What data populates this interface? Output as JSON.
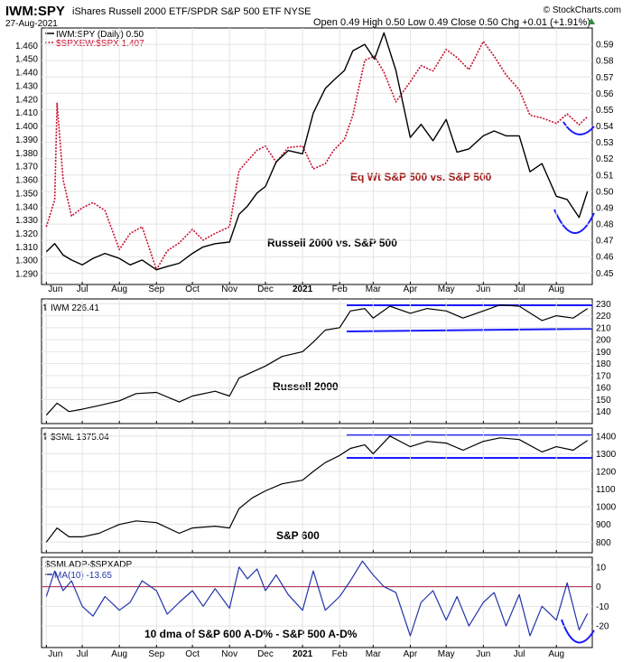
{
  "header": {
    "ticker": "IWM:SPY",
    "name": "iShares Russell 2000 ETF/SPDR S&P 500 ETF NYSE",
    "watermark": "© StockCharts.com",
    "date": "27-Aug-2021",
    "quote": "Open 0.49  High 0.50  Low 0.49  Close 0.50  Chg +0.01 (+1.91%)"
  },
  "colors": {
    "black": "#000000",
    "red": "#c8102e",
    "blue": "#1a1aff",
    "ma": "#2233aa",
    "zero": "#b02040"
  },
  "x_labels": [
    "Jun",
    "Jul",
    "Aug",
    "Sep",
    "Oct",
    "Nov",
    "Dec",
    "2021",
    "Feb",
    "Mar",
    "Apr",
    "May",
    "Jun",
    "Jul",
    "Aug"
  ],
  "chart_data": [
    {
      "type": "line",
      "legend": [
        "IWM:SPY (Daily) 0.50",
        "$SPXEW:$SPX 1.407"
      ],
      "annotations": [
        "Eq Wt S&P 500 vs. S&P 500",
        "Russell 2000 vs. S&P 500"
      ],
      "left_axis": {
        "ylim": [
          1.282,
          1.473
        ],
        "ticks": [
          "1.290",
          "1.300",
          "1.310",
          "1.320",
          "1.330",
          "1.340",
          "1.350",
          "1.360",
          "1.370",
          "1.380",
          "1.390",
          "1.400",
          "1.410",
          "1.420",
          "1.430",
          "1.440",
          "1.450",
          "1.460"
        ]
      },
      "right_axis": {
        "ylim": [
          0.443,
          0.6
        ],
        "ticks": [
          "0.45",
          "0.46",
          "0.47",
          "0.48",
          "0.49",
          "0.50",
          "0.51",
          "0.52",
          "0.53",
          "0.54",
          "0.55",
          "0.56",
          "0.57",
          "0.58",
          "0.59"
        ]
      },
      "series": [
        {
          "name": "IWM:SPY",
          "axis": "right",
          "style": "solid",
          "color": "#000000",
          "x": [
            "2020-06-01",
            "2020-06-08",
            "2020-06-15",
            "2020-06-22",
            "2020-07-01",
            "2020-07-10",
            "2020-07-20",
            "2020-08-01",
            "2020-08-10",
            "2020-08-20",
            "2020-09-01",
            "2020-09-10",
            "2020-09-20",
            "2020-10-01",
            "2020-10-10",
            "2020-10-20",
            "2020-11-01",
            "2020-11-09",
            "2020-11-16",
            "2020-11-24",
            "2020-12-01",
            "2020-12-10",
            "2020-12-20",
            "2021-01-01",
            "2021-01-10",
            "2021-01-20",
            "2021-01-27",
            "2021-02-05",
            "2021-02-12",
            "2021-02-22",
            "2021-03-02",
            "2021-03-10",
            "2021-03-20",
            "2021-04-01",
            "2021-04-10",
            "2021-04-20",
            "2021-05-01",
            "2021-05-10",
            "2021-05-20",
            "2021-06-01",
            "2021-06-10",
            "2021-06-20",
            "2021-07-01",
            "2021-07-10",
            "2021-07-20",
            "2021-08-01",
            "2021-08-10",
            "2021-08-20",
            "2021-08-27"
          ],
          "values": [
            0.463,
            0.468,
            0.461,
            0.458,
            0.455,
            0.459,
            0.462,
            0.459,
            0.455,
            0.458,
            0.452,
            0.454,
            0.456,
            0.462,
            0.466,
            0.468,
            0.469,
            0.486,
            0.491,
            0.499,
            0.503,
            0.518,
            0.525,
            0.523,
            0.548,
            0.563,
            0.568,
            0.574,
            0.586,
            0.59,
            0.581,
            0.597,
            0.574,
            0.533,
            0.541,
            0.531,
            0.544,
            0.524,
            0.526,
            0.534,
            0.537,
            0.534,
            0.534,
            0.512,
            0.517,
            0.497,
            0.495,
            0.484,
            0.5
          ]
        },
        {
          "name": "$SPXEW:$SPX",
          "axis": "left",
          "style": "dotted",
          "color": "#c8102e",
          "x": [
            "2020-06-01",
            "2020-06-08",
            "2020-06-10",
            "2020-06-15",
            "2020-06-22",
            "2020-07-01",
            "2020-07-10",
            "2020-07-20",
            "2020-08-01",
            "2020-08-10",
            "2020-08-20",
            "2020-09-01",
            "2020-09-10",
            "2020-09-20",
            "2020-10-01",
            "2020-10-10",
            "2020-10-20",
            "2020-11-01",
            "2020-11-09",
            "2020-11-16",
            "2020-11-24",
            "2020-12-01",
            "2020-12-10",
            "2020-12-20",
            "2021-01-01",
            "2021-01-10",
            "2021-01-20",
            "2021-01-27",
            "2021-02-05",
            "2021-02-12",
            "2021-02-22",
            "2021-03-02",
            "2021-03-10",
            "2021-03-20",
            "2021-04-01",
            "2021-04-10",
            "2021-04-20",
            "2021-05-01",
            "2021-05-10",
            "2021-05-20",
            "2021-06-01",
            "2021-06-10",
            "2021-06-20",
            "2021-07-01",
            "2021-07-10",
            "2021-07-20",
            "2021-08-01",
            "2021-08-10",
            "2021-08-20",
            "2021-08-27"
          ],
          "values": [
            1.325,
            1.345,
            1.417,
            1.36,
            1.333,
            1.339,
            1.343,
            1.337,
            1.308,
            1.32,
            1.325,
            1.293,
            1.307,
            1.313,
            1.323,
            1.315,
            1.32,
            1.325,
            1.367,
            1.374,
            1.382,
            1.385,
            1.373,
            1.384,
            1.385,
            1.368,
            1.372,
            1.382,
            1.39,
            1.408,
            1.449,
            1.452,
            1.44,
            1.418,
            1.433,
            1.445,
            1.441,
            1.457,
            1.451,
            1.442,
            1.463,
            1.452,
            1.438,
            1.427,
            1.408,
            1.406,
            1.402,
            1.409,
            1.401,
            1.407
          ]
        }
      ]
    },
    {
      "type": "line",
      "legend": [
        "IWM 226.41"
      ],
      "annotations": [
        "Russell 2000"
      ],
      "ylim": [
        130,
        234
      ],
      "ticks": [
        "140",
        "150",
        "160",
        "170",
        "180",
        "190",
        "200",
        "210",
        "220",
        "230"
      ],
      "series": [
        {
          "name": "IWM",
          "color": "#000000",
          "x": [
            "2020-06-01",
            "2020-06-10",
            "2020-06-20",
            "2020-07-01",
            "2020-07-15",
            "2020-08-01",
            "2020-08-15",
            "2020-09-01",
            "2020-09-20",
            "2020-10-01",
            "2020-10-20",
            "2020-11-01",
            "2020-11-09",
            "2020-11-20",
            "2020-12-01",
            "2020-12-15",
            "2021-01-01",
            "2021-01-10",
            "2021-01-20",
            "2021-02-01",
            "2021-02-10",
            "2021-02-22",
            "2021-03-01",
            "2021-03-15",
            "2021-04-01",
            "2021-04-15",
            "2021-05-01",
            "2021-05-15",
            "2021-06-01",
            "2021-06-15",
            "2021-07-01",
            "2021-07-20",
            "2021-08-01",
            "2021-08-15",
            "2021-08-27"
          ],
          "values": [
            137,
            147,
            140,
            142,
            145,
            149,
            155,
            156,
            148,
            153,
            157,
            153,
            168,
            173,
            178,
            186,
            190,
            198,
            208,
            210,
            224,
            226,
            218,
            228,
            222,
            226,
            224,
            218,
            224,
            229,
            228,
            216,
            220,
            218,
            226
          ]
        }
      ]
    },
    {
      "type": "line",
      "legend": [
        "$SML 1375.04"
      ],
      "annotations": [
        "S&P 600"
      ],
      "ylim": [
        740,
        1445
      ],
      "ticks": [
        "800",
        "900",
        "1000",
        "1100",
        "1200",
        "1300",
        "1400"
      ],
      "series": [
        {
          "name": "$SML",
          "color": "#000000",
          "x": [
            "2020-06-01",
            "2020-06-10",
            "2020-06-20",
            "2020-07-01",
            "2020-07-15",
            "2020-08-01",
            "2020-08-15",
            "2020-09-01",
            "2020-09-20",
            "2020-10-01",
            "2020-10-20",
            "2020-11-01",
            "2020-11-09",
            "2020-11-20",
            "2020-12-01",
            "2020-12-15",
            "2021-01-01",
            "2021-01-10",
            "2021-01-20",
            "2021-02-01",
            "2021-02-10",
            "2021-02-22",
            "2021-03-01",
            "2021-03-15",
            "2021-04-01",
            "2021-04-15",
            "2021-05-01",
            "2021-05-15",
            "2021-06-01",
            "2021-06-15",
            "2021-07-01",
            "2021-07-20",
            "2021-08-01",
            "2021-08-15",
            "2021-08-27"
          ],
          "values": [
            800,
            880,
            830,
            830,
            850,
            900,
            920,
            910,
            850,
            880,
            890,
            880,
            990,
            1050,
            1090,
            1130,
            1150,
            1200,
            1250,
            1290,
            1330,
            1350,
            1300,
            1400,
            1340,
            1370,
            1360,
            1320,
            1370,
            1390,
            1380,
            1310,
            1340,
            1320,
            1375
          ]
        }
      ]
    },
    {
      "type": "line",
      "legend": [
        "$SMLADP-$SPXADP",
        "MA(10) -13.65"
      ],
      "annotations": [
        "10 dma of S&P 600 A-D% - S&P 500 A-D%"
      ],
      "ylim": [
        -31,
        15
      ],
      "ticks": [
        "-20",
        "-10",
        "0",
        "10"
      ],
      "series": [
        {
          "name": "MA(10)",
          "color": "#2233aa",
          "x": [
            "2020-06-01",
            "2020-06-08",
            "2020-06-15",
            "2020-06-22",
            "2020-07-01",
            "2020-07-10",
            "2020-07-20",
            "2020-08-01",
            "2020-08-10",
            "2020-08-20",
            "2020-09-01",
            "2020-09-10",
            "2020-09-20",
            "2020-10-01",
            "2020-10-10",
            "2020-10-20",
            "2020-11-01",
            "2020-11-09",
            "2020-11-16",
            "2020-11-24",
            "2020-12-01",
            "2020-12-10",
            "2020-12-20",
            "2021-01-01",
            "2021-01-10",
            "2021-01-20",
            "2021-02-01",
            "2021-02-10",
            "2021-02-20",
            "2021-03-01",
            "2021-03-10",
            "2021-03-20",
            "2021-04-01",
            "2021-04-10",
            "2021-04-20",
            "2021-05-01",
            "2021-05-10",
            "2021-05-20",
            "2021-06-01",
            "2021-06-10",
            "2021-06-20",
            "2021-07-01",
            "2021-07-10",
            "2021-07-20",
            "2021-08-01",
            "2021-08-10",
            "2021-08-20",
            "2021-08-27"
          ],
          "values": [
            -5,
            8,
            -2,
            3,
            -10,
            -15,
            -5,
            -12,
            -8,
            3,
            -2,
            -14,
            -8,
            -2,
            -10,
            -1,
            -11,
            10,
            4,
            9,
            -2,
            6,
            -4,
            -12,
            8,
            -12,
            -5,
            3,
            13,
            6,
            0,
            -3,
            -25,
            -8,
            -2,
            -17,
            -5,
            -20,
            -8,
            -3,
            -20,
            -4,
            -25,
            -10,
            -17,
            2,
            -22,
            -13.65
          ]
        }
      ]
    }
  ]
}
